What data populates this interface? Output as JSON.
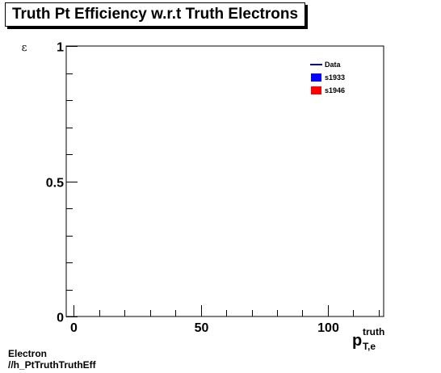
{
  "chart_data": {
    "type": "line",
    "title": "Truth Pt Efficiency w.r.t Truth Electrons",
    "ylabel": "ε",
    "xlabel": {
      "main": "p",
      "sup": "truth",
      "sub": "T,e"
    },
    "xlim": [
      -3,
      122
    ],
    "ylim": [
      0,
      1
    ],
    "x_ticks": [
      {
        "value": 0,
        "label": "0"
      },
      {
        "value": 50,
        "label": "50"
      },
      {
        "value": 100,
        "label": "100"
      }
    ],
    "y_ticks": [
      {
        "value": 0,
        "label": "0"
      },
      {
        "value": 0.5,
        "label": "0.5"
      },
      {
        "value": 1,
        "label": "1"
      }
    ],
    "x_minor_step": 10,
    "y_minor_step": 0.1,
    "grid": false,
    "legend_position": "top-right",
    "series": [
      {
        "name": "Data",
        "style": "line",
        "color": "#00008b",
        "x": [],
        "y": []
      },
      {
        "name": "s1933",
        "style": "fill",
        "color": "#0000ff",
        "x": [],
        "y": []
      },
      {
        "name": "s1946",
        "style": "fill",
        "color": "#ff0000",
        "x": [],
        "y": []
      }
    ]
  },
  "footer": {
    "line1": "Electron",
    "line2": "//h_PtTruthTruthEff"
  }
}
